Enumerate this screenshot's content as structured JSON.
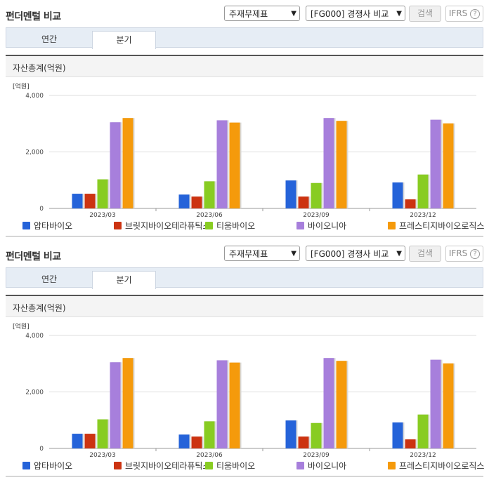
{
  "panels": [
    {
      "title": "펀더멘털 비교",
      "select_item": "주재무제표",
      "select_peer": "[FG000] 경쟁사 비교",
      "search_label": "검색",
      "ifrs_label": "IFRS",
      "tabs": [
        "연간",
        "분기"
      ],
      "active_tab": "분기",
      "section_title": "자산총계(억원)"
    },
    {
      "title": "펀더멘털 비교",
      "select_item": "주재무제표",
      "select_peer": "[FG000] 경쟁사 비교",
      "search_label": "검색",
      "ifrs_label": "IFRS",
      "tabs": [
        "연간",
        "분기"
      ],
      "active_tab": "분기",
      "section_title": "자산총계(억원)"
    }
  ],
  "chart_data": [
    {
      "type": "bar",
      "unit_label": "[억원]",
      "categories": [
        "2023/03",
        "2023/06",
        "2023/09",
        "2023/12"
      ],
      "ylim": [
        0,
        4000
      ],
      "yticks": [
        0,
        2000,
        4000
      ],
      "ytick_labels": [
        "0",
        "2,000",
        "4,000"
      ],
      "legend_position": "bottom",
      "series": [
        {
          "name": "압타바이오",
          "color": "#2563d9",
          "values": [
            520,
            490,
            990,
            920
          ]
        },
        {
          "name": "브릿지바이오테라퓨틱스",
          "color": "#cc3311",
          "values": [
            520,
            420,
            420,
            320
          ]
        },
        {
          "name": "티움바이오",
          "color": "#88cc22",
          "values": [
            1030,
            960,
            900,
            1200
          ]
        },
        {
          "name": "바이오니아",
          "color": "#a77fdc",
          "values": [
            3050,
            3120,
            3200,
            3140
          ]
        },
        {
          "name": "프레스티지바이오로직스",
          "color": "#f59a0b",
          "values": [
            3200,
            3040,
            3100,
            3010
          ]
        }
      ]
    },
    {
      "type": "bar",
      "unit_label": "[억원]",
      "categories": [
        "2023/03",
        "2023/06",
        "2023/09",
        "2023/12"
      ],
      "ylim": [
        0,
        4000
      ],
      "yticks": [
        0,
        2000,
        4000
      ],
      "ytick_labels": [
        "0",
        "2,000",
        "4,000"
      ],
      "legend_position": "bottom",
      "series": [
        {
          "name": "압타바이오",
          "color": "#2563d9",
          "values": [
            520,
            490,
            990,
            920
          ]
        },
        {
          "name": "브릿지바이오테라퓨틱스",
          "color": "#cc3311",
          "values": [
            520,
            420,
            420,
            320
          ]
        },
        {
          "name": "티움바이오",
          "color": "#88cc22",
          "values": [
            1030,
            960,
            900,
            1200
          ]
        },
        {
          "name": "바이오니아",
          "color": "#a77fdc",
          "values": [
            3050,
            3120,
            3200,
            3140
          ]
        },
        {
          "name": "프레스티지바이오로직스",
          "color": "#f59a0b",
          "values": [
            3200,
            3040,
            3100,
            3010
          ]
        }
      ]
    }
  ]
}
